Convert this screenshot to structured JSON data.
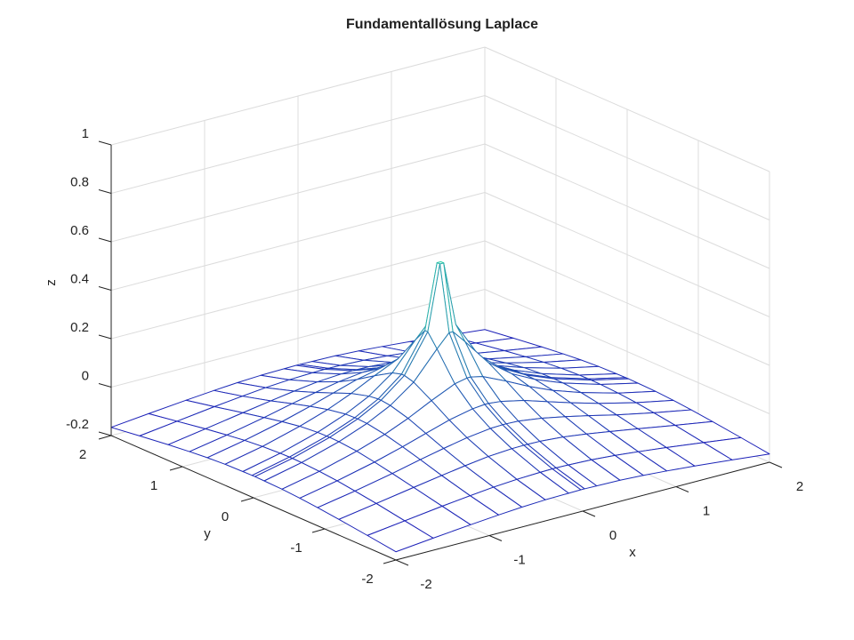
{
  "chart_data": {
    "type": "mesh",
    "title": "Fundamentallösung Laplace",
    "xlabel": "x",
    "ylabel": "y",
    "zlabel": "z",
    "x": [
      -2,
      -1.6,
      -1.2,
      -0.9,
      -0.65,
      -0.4,
      -0.15,
      -0.02,
      0.02,
      0.15,
      0.4,
      0.65,
      0.9,
      1.2,
      1.6,
      2
    ],
    "y": [
      -2,
      -1.6,
      -1.2,
      -0.9,
      -0.65,
      -0.4,
      -0.15,
      -0.02,
      0.02,
      0.15,
      0.4,
      0.65,
      0.9,
      1.2,
      1.6,
      2
    ],
    "z": [
      [
        -0.166,
        -0.15,
        -0.135,
        -0.125,
        -0.118,
        -0.113,
        -0.111,
        -0.11,
        -0.11,
        -0.111,
        -0.113,
        -0.118,
        -0.125,
        -0.135,
        -0.15,
        -0.166
      ],
      [
        -0.15,
        -0.13,
        -0.11,
        -0.097,
        -0.087,
        -0.08,
        -0.076,
        -0.075,
        -0.075,
        -0.076,
        -0.08,
        -0.087,
        -0.097,
        -0.11,
        -0.13,
        -0.15
      ],
      [
        -0.135,
        -0.11,
        -0.084,
        -0.065,
        -0.05,
        -0.037,
        -0.03,
        -0.029,
        -0.029,
        -0.03,
        -0.037,
        -0.05,
        -0.065,
        -0.084,
        -0.11,
        -0.135
      ],
      [
        -0.125,
        -0.097,
        -0.065,
        -0.038,
        -0.017,
        0.002,
        0.015,
        0.017,
        0.017,
        0.015,
        0.002,
        -0.017,
        -0.038,
        -0.065,
        -0.097,
        -0.125
      ],
      [
        -0.118,
        -0.087,
        -0.05,
        -0.017,
        0.013,
        0.043,
        0.064,
        0.069,
        0.069,
        0.064,
        0.043,
        0.013,
        -0.017,
        -0.05,
        -0.087,
        -0.118
      ],
      [
        -0.113,
        -0.08,
        -0.037,
        0.002,
        0.043,
        0.091,
        0.135,
        0.146,
        0.146,
        0.135,
        0.091,
        0.043,
        0.002,
        -0.037,
        -0.08,
        -0.113
      ],
      [
        -0.111,
        -0.076,
        -0.03,
        0.015,
        0.064,
        0.135,
        0.247,
        0.301,
        0.301,
        0.247,
        0.135,
        0.064,
        0.015,
        -0.03,
        -0.076,
        -0.111
      ],
      [
        -0.11,
        -0.075,
        -0.029,
        0.017,
        0.069,
        0.146,
        0.301,
        0.568,
        0.568,
        0.301,
        0.146,
        0.069,
        0.017,
        -0.029,
        -0.075,
        -0.11
      ],
      [
        -0.11,
        -0.075,
        -0.029,
        0.017,
        0.069,
        0.146,
        0.301,
        0.568,
        0.568,
        0.301,
        0.146,
        0.069,
        0.017,
        -0.029,
        -0.075,
        -0.11
      ],
      [
        -0.111,
        -0.076,
        -0.03,
        0.015,
        0.064,
        0.135,
        0.247,
        0.301,
        0.301,
        0.247,
        0.135,
        0.064,
        0.015,
        -0.03,
        -0.076,
        -0.111
      ],
      [
        -0.113,
        -0.08,
        -0.037,
        0.002,
        0.043,
        0.091,
        0.135,
        0.146,
        0.146,
        0.135,
        0.091,
        0.043,
        0.002,
        -0.037,
        -0.08,
        -0.113
      ],
      [
        -0.118,
        -0.087,
        -0.05,
        -0.017,
        0.013,
        0.043,
        0.064,
        0.069,
        0.069,
        0.064,
        0.043,
        0.013,
        -0.017,
        -0.05,
        -0.087,
        -0.118
      ],
      [
        -0.125,
        -0.097,
        -0.065,
        -0.038,
        -0.017,
        0.002,
        0.015,
        0.017,
        0.017,
        0.015,
        0.002,
        -0.017,
        -0.038,
        -0.065,
        -0.097,
        -0.125
      ],
      [
        -0.135,
        -0.11,
        -0.084,
        -0.065,
        -0.05,
        -0.037,
        -0.03,
        -0.029,
        -0.029,
        -0.03,
        -0.037,
        -0.05,
        -0.065,
        -0.084,
        -0.11,
        -0.135
      ],
      [
        -0.15,
        -0.13,
        -0.11,
        -0.097,
        -0.087,
        -0.08,
        -0.076,
        -0.075,
        -0.075,
        -0.076,
        -0.08,
        -0.087,
        -0.097,
        -0.11,
        -0.13,
        -0.15
      ],
      [
        -0.166,
        -0.15,
        -0.135,
        -0.125,
        -0.118,
        -0.113,
        -0.111,
        -0.11,
        -0.11,
        -0.111,
        -0.113,
        -0.118,
        -0.125,
        -0.135,
        -0.15,
        -0.166
      ]
    ],
    "xlim": [
      -2,
      2
    ],
    "ylim": [
      -2,
      2
    ],
    "zlim": [
      -0.2,
      1
    ],
    "xticks": [
      -2,
      -1,
      0,
      1,
      2
    ],
    "yticks": [
      -2,
      -1,
      0,
      1,
      2
    ],
    "zticks": [
      -0.2,
      0,
      0.2,
      0.4,
      0.6,
      0.8,
      1
    ],
    "grid": true,
    "colormap": [
      "#1c1cb8",
      "#2ed4a8"
    ]
  }
}
